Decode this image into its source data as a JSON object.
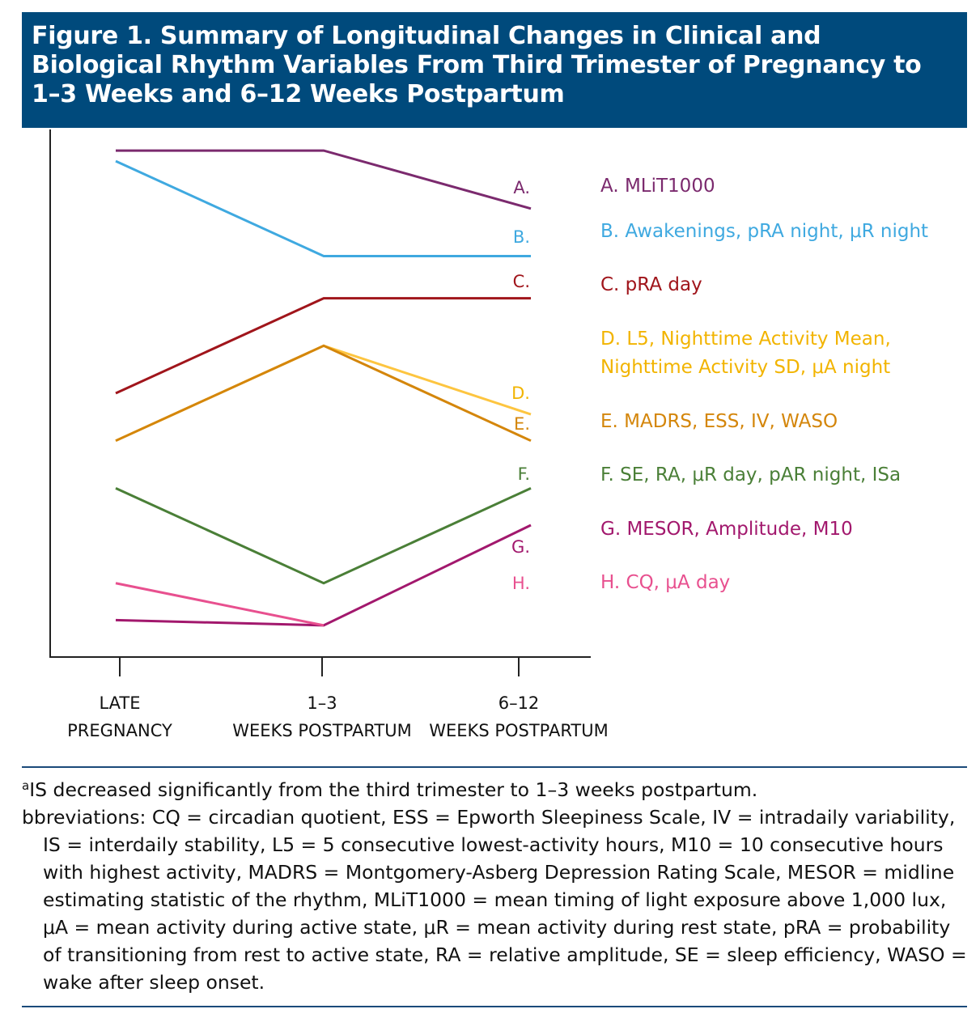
{
  "chart_data": {
    "type": "line",
    "title": "Figure 1. Summary of Longitudinal Changes in Clinical and Biological Rhythm Variables From Third Trimester of Pregnancy to 1–3 Weeks and 6–12 Weeks Postpartum",
    "categories": [
      "LATE PREGNANCY",
      "1–3 WEEKS POSTPARTUM",
      "6–12 WEEKS POSTPARTUM"
    ],
    "ylim": [
      0,
      100
    ],
    "grid": false,
    "legend": "right",
    "series": [
      {
        "letter": "A.",
        "name": "A. MLiT1000",
        "color": "#7b2a6e",
        "values": [
          96,
          96,
          85
        ]
      },
      {
        "letter": "B.",
        "name": "B. Awakenings, pRA night, μR night",
        "color": "#3fa9e0",
        "values": [
          94,
          76,
          76
        ]
      },
      {
        "letter": "C.",
        "name": "C. pRA day",
        "color": "#a0151b",
        "values": [
          50,
          68,
          68
        ]
      },
      {
        "letter": "D.",
        "name": "D. L5, Nighttime Activity Mean, Nighttime Activity SD, μA night",
        "color": "#fdc540",
        "text_color": "#f2b400",
        "values": [
          41,
          59,
          46
        ]
      },
      {
        "letter": "E.",
        "name": "E. MADRS, ESS, IV, WASO",
        "color": "#d4860b",
        "values": [
          41,
          59,
          41
        ]
      },
      {
        "letter": "F.",
        "name": "F. SE, RA, μR day, pAR night, ISa",
        "color": "#4a7f37",
        "values": [
          32,
          14,
          32
        ]
      },
      {
        "letter": "G.",
        "name": "G. MESOR, Amplitude, M10",
        "color": "#a2186d",
        "values": [
          7,
          6,
          25
        ]
      },
      {
        "letter": "H.",
        "name": "H. CQ, μA day",
        "color": "#e8508f",
        "values": [
          14,
          6,
          null
        ]
      }
    ]
  },
  "footnote": {
    "a": "IS decreased significantly from the third trimester to 1–3 weeks postpartum.",
    "abbrev": "bbreviations: CQ = circadian quotient, ESS = Epworth Sleepiness Scale, IV = intradaily variability, IS = interdaily stability, L5 = 5 consecutive lowest-activity hours, M10 = 10 consecutive hours with highest activity, MADRS = Montgomery-Asberg Depression Rating Scale, MESOR = midline estimating statistic of the rhythm, MLiT1000 = mean timing of light exposure above 1,000 lux, μA = mean activity during active state, μR = mean activity during rest state, pRA = probability of transitioning from rest to active state, RA = relative amplitude, SE = sleep efficiency, WASO = wake after sleep onset."
  }
}
